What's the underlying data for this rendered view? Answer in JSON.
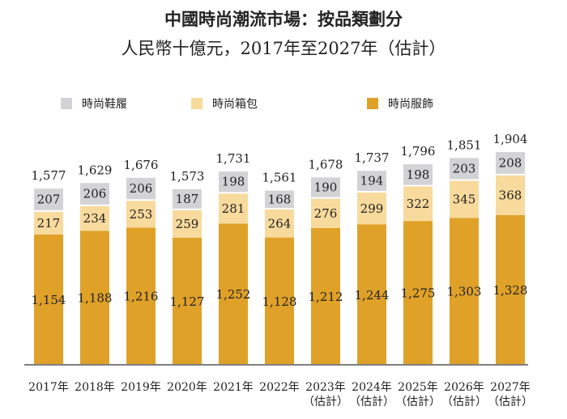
{
  "chart_data": {
    "type": "bar",
    "stacked": true,
    "title": "中國時尚潮流市場：按品類劃分",
    "subtitle": "人民幣十億元，2017年至2027年（估計）",
    "categories": [
      "2017年",
      "2018年",
      "2019年",
      "2020年",
      "2021年",
      "2022年",
      "2023年",
      "2024年",
      "2025年",
      "2026年",
      "2027年"
    ],
    "category_notes": [
      "",
      "",
      "",
      "",
      "",
      "",
      "（估計）",
      "（估計）",
      "（估計）",
      "（估計）",
      "（估計）"
    ],
    "series": [
      {
        "name": "時尚服飾",
        "color": "#E0A128",
        "values": [
          1154,
          1188,
          1216,
          1127,
          1252,
          1128,
          1212,
          1244,
          1275,
          1303,
          1328
        ]
      },
      {
        "name": "時尚箱包",
        "color": "#F8DA9C",
        "values": [
          217,
          234,
          253,
          259,
          281,
          264,
          276,
          299,
          322,
          345,
          368
        ]
      },
      {
        "name": "時尚鞋履",
        "color": "#D3D3D5",
        "values": [
          207,
          206,
          206,
          187,
          198,
          168,
          190,
          194,
          198,
          203,
          208
        ]
      }
    ],
    "totals": [
      "1,577",
      "1,629",
      "1,676",
      "1,573",
      "1,731",
      "1,561",
      "1,678",
      "1,737",
      "1,796",
      "1,851",
      "1,904"
    ],
    "legend": [
      "時尚鞋履",
      "時尚箱包",
      "時尚服飾"
    ],
    "legend_position": "top",
    "grid": false,
    "ylim": [
      0,
      1904
    ]
  }
}
